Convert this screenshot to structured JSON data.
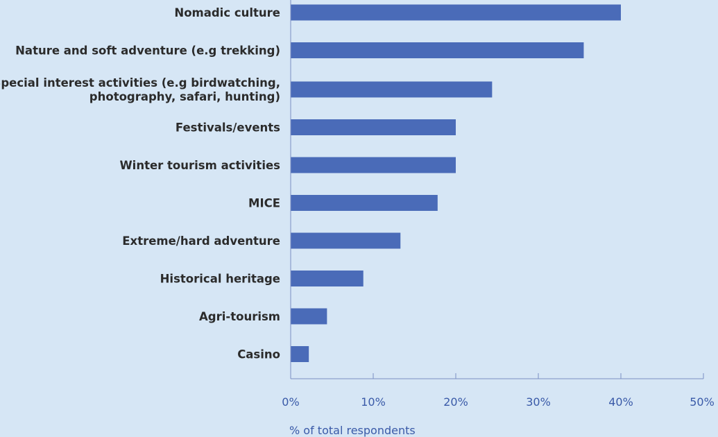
{
  "chart_data": {
    "type": "bar",
    "orientation": "horizontal",
    "categories": [
      [
        "Nomadic culture"
      ],
      [
        "Nature and soft adventure (e.g trekking)"
      ],
      [
        "Special interest activities (e.g birdwatching,",
        "photography, safari, hunting)"
      ],
      [
        "Festivals/events"
      ],
      [
        "Winter tourism activities"
      ],
      [
        "MICE"
      ],
      [
        "Extreme/hard adventure"
      ],
      [
        "Historical heritage"
      ],
      [
        "Agri-tourism"
      ],
      [
        "Casino"
      ]
    ],
    "values": [
      40,
      35.5,
      24.4,
      20,
      20,
      17.8,
      13.3,
      8.8,
      4.4,
      2.2
    ],
    "xlabel": "% of total respondents",
    "ylabel": "",
    "title": "",
    "xlim": [
      0,
      50
    ],
    "xticks": [
      "0%",
      "10%",
      "20%",
      "30%",
      "40%",
      "50%"
    ],
    "grid": false,
    "legend": "none",
    "colors": {
      "bar": "#4a6bb8",
      "background": "#d6e6f5",
      "axis": "#7a8fc4",
      "tick_text": "#3a5aa8",
      "label_text": "#2b2b2b"
    }
  }
}
